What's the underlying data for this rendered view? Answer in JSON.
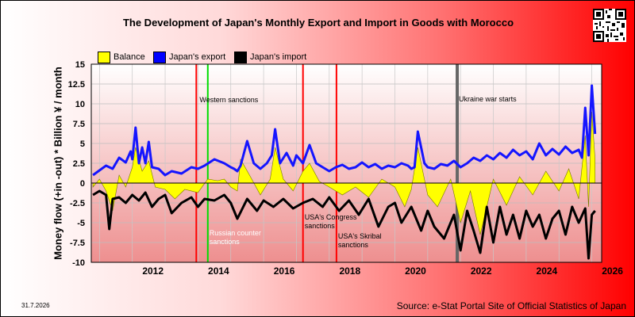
{
  "chart_data": {
    "type": "line",
    "title": "The Development of Japan's Monthly Export and Import in Goods with Morocco",
    "ylabel": "Money flow (+in -out) * Billion ¥ / month",
    "ylim": [
      -10,
      15
    ],
    "yticks": [
      "15",
      "12.5",
      "10",
      "7.5",
      "5",
      "2.5",
      "0",
      "-2.5",
      "-5",
      "-7.5",
      "-10"
    ],
    "xlim": [
      2010.75,
      2026.3
    ],
    "xticks": [
      "2012",
      "2014",
      "2016",
      "2018",
      "2020",
      "2022",
      "2024",
      "2026"
    ],
    "grid": true,
    "legend_position": "top",
    "legend": [
      {
        "label": "Balance",
        "color": "#ffff00"
      },
      {
        "label": "Japan's export",
        "color": "#0000ff"
      },
      {
        "label": "Japan's import",
        "color": "#000000"
      }
    ],
    "series": [
      {
        "name": "Japan's export",
        "color": "#1515ff",
        "x": [
          2010.8,
          2011.0,
          2011.2,
          2011.4,
          2011.6,
          2011.8,
          2011.95,
          2012.0,
          2012.1,
          2012.2,
          2012.3,
          2012.4,
          2012.5,
          2012.6,
          2012.8,
          2013.0,
          2013.2,
          2013.5,
          2013.8,
          2014.0,
          2014.2,
          2014.5,
          2014.8,
          2015.0,
          2015.1,
          2015.2,
          2015.3,
          2015.5,
          2015.7,
          2015.9,
          2016.1,
          2016.25,
          2016.35,
          2016.5,
          2016.7,
          2016.9,
          2017.0,
          2017.2,
          2017.4,
          2017.6,
          2017.8,
          2018.0,
          2018.2,
          2018.4,
          2018.6,
          2018.8,
          2019.0,
          2019.2,
          2019.4,
          2019.6,
          2019.8,
          2020.0,
          2020.2,
          2020.4,
          2020.5,
          2020.6,
          2020.7,
          2020.9,
          2021.0,
          2021.2,
          2021.4,
          2021.6,
          2021.8,
          2022.0,
          2022.2,
          2022.4,
          2022.6,
          2022.8,
          2023.0,
          2023.2,
          2023.4,
          2023.6,
          2023.8,
          2024.0,
          2024.2,
          2024.4,
          2024.6,
          2024.8,
          2025.0,
          2025.2,
          2025.4,
          2025.6,
          2025.7,
          2025.8,
          2025.9,
          2026.0,
          2026.1
        ],
        "values": [
          1.0,
          1.6,
          2.2,
          1.8,
          3.2,
          2.6,
          4.0,
          3.0,
          7.0,
          2.5,
          4.5,
          2.5,
          5.2,
          2.0,
          1.8,
          1.0,
          1.5,
          1.2,
          2.0,
          1.8,
          2.2,
          3.0,
          2.5,
          2.0,
          1.8,
          1.5,
          2.2,
          5.3,
          2.5,
          1.8,
          2.5,
          3.5,
          6.8,
          2.5,
          3.8,
          2.2,
          3.5,
          2.5,
          4.8,
          2.5,
          2.0,
          1.5,
          2.0,
          2.3,
          1.8,
          2.0,
          2.6,
          2.0,
          2.4,
          1.8,
          2.2,
          2.0,
          2.5,
          2.2,
          1.8,
          2.0,
          6.5,
          2.5,
          2.0,
          1.8,
          2.4,
          2.2,
          2.8,
          2.0,
          2.5,
          3.2,
          2.8,
          3.5,
          3.0,
          3.8,
          3.2,
          4.2,
          3.5,
          4.0,
          3.0,
          5.0,
          3.5,
          4.3,
          3.6,
          4.6,
          3.8,
          4.2,
          3.2,
          9.5,
          3.5,
          12.3,
          6.2
        ]
      },
      {
        "name": "Japan's import",
        "color": "#000000",
        "x": [
          2010.8,
          2011.0,
          2011.2,
          2011.3,
          2011.4,
          2011.6,
          2011.8,
          2012.0,
          2012.2,
          2012.4,
          2012.6,
          2012.8,
          2013.0,
          2013.2,
          2013.5,
          2013.8,
          2014.0,
          2014.2,
          2014.5,
          2014.8,
          2015.0,
          2015.2,
          2015.5,
          2015.8,
          2016.0,
          2016.3,
          2016.6,
          2016.9,
          2017.2,
          2017.5,
          2017.8,
          2018.0,
          2018.3,
          2018.6,
          2018.9,
          2019.2,
          2019.5,
          2019.8,
          2020.0,
          2020.2,
          2020.5,
          2020.8,
          2021.0,
          2021.2,
          2021.5,
          2021.8,
          2022.0,
          2022.2,
          2022.4,
          2022.6,
          2022.8,
          2023.0,
          2023.2,
          2023.4,
          2023.6,
          2023.8,
          2024.0,
          2024.2,
          2024.4,
          2024.6,
          2024.8,
          2025.0,
          2025.2,
          2025.4,
          2025.6,
          2025.8,
          2025.9,
          2026.0,
          2026.1
        ],
        "values": [
          -1.5,
          -1.0,
          -1.5,
          -5.8,
          -2.0,
          -1.8,
          -2.5,
          -1.5,
          -2.2,
          -1.2,
          -3.0,
          -2.0,
          -1.5,
          -3.8,
          -2.5,
          -1.8,
          -3.0,
          -2.0,
          -2.2,
          -1.5,
          -2.5,
          -4.5,
          -2.0,
          -3.5,
          -2.2,
          -3.0,
          -2.0,
          -3.2,
          -2.5,
          -2.0,
          -3.0,
          -1.8,
          -3.5,
          -2.2,
          -4.0,
          -2.0,
          -5.5,
          -3.0,
          -2.5,
          -5.0,
          -3.0,
          -6.0,
          -3.5,
          -5.5,
          -7.0,
          -4.0,
          -8.5,
          -3.5,
          -6.0,
          -8.8,
          -3.0,
          -7.5,
          -3.0,
          -6.5,
          -4.0,
          -7.0,
          -3.5,
          -5.5,
          -4.0,
          -7.0,
          -4.5,
          -3.5,
          -6.5,
          -3.0,
          -5.0,
          -3.2,
          -9.5,
          -4.0,
          -3.5
        ]
      },
      {
        "name": "Balance",
        "color": "#ffff00",
        "x": [
          2010.8,
          2011.0,
          2011.2,
          2011.4,
          2011.6,
          2011.8,
          2012.0,
          2012.1,
          2012.3,
          2012.5,
          2012.7,
          2013.0,
          2013.3,
          2013.6,
          2014.0,
          2014.3,
          2014.6,
          2014.8,
          2015.0,
          2015.2,
          2015.3,
          2015.6,
          2015.9,
          2016.2,
          2016.35,
          2016.6,
          2016.9,
          2017.2,
          2017.4,
          2017.7,
          2018.0,
          2018.4,
          2018.8,
          2019.2,
          2019.6,
          2020.0,
          2020.3,
          2020.5,
          2020.7,
          2021.0,
          2021.3,
          2021.7,
          2022.0,
          2022.3,
          2022.6,
          2023.0,
          2023.4,
          2023.8,
          2024.2,
          2024.6,
          2025.0,
          2025.3,
          2025.6,
          2025.8,
          2025.9,
          2026.0,
          2026.1
        ],
        "values": [
          -0.5,
          0.5,
          -1.0,
          -3.5,
          1.0,
          -0.5,
          2.0,
          4.5,
          1.5,
          2.8,
          -0.5,
          -0.8,
          -2.0,
          -0.8,
          -1.2,
          0.5,
          0.3,
          0.5,
          -0.5,
          -1.0,
          3.0,
          0.8,
          -1.5,
          0.5,
          4.5,
          0.5,
          -1.0,
          1.5,
          2.5,
          0.2,
          -0.5,
          -1.5,
          -0.5,
          -1.8,
          0.5,
          -0.5,
          -3.0,
          -0.8,
          4.5,
          -1.5,
          -3.0,
          0.5,
          -5.0,
          -1.0,
          -6.5,
          0.5,
          -2.8,
          0.8,
          -1.5,
          1.5,
          -1.0,
          1.8,
          -2.0,
          6.0,
          -3.0,
          9.0,
          3.0
        ]
      }
    ],
    "events": [
      {
        "x": 2013.95,
        "color": "#ff0000",
        "label": ""
      },
      {
        "x": 2014.3,
        "color": "#00dd00",
        "label": "Russian counter sanctions"
      },
      {
        "x": 2017.2,
        "color": "#ff0000",
        "label": "USA's Congress sanctions"
      },
      {
        "x": 2018.22,
        "color": "#ff0000",
        "label": "USA's Skribal sanctions"
      },
      {
        "x": 2021.9,
        "color": "#666666",
        "label": "Ukraine war starts"
      }
    ],
    "annotations": [
      {
        "text": "Western sanctions",
        "x": 2014.0,
        "y": 11.0
      }
    ]
  },
  "date_stamp": "31.7.2026",
  "source": "Source: e-Stat Portal Site of Official Statistics of Japan"
}
